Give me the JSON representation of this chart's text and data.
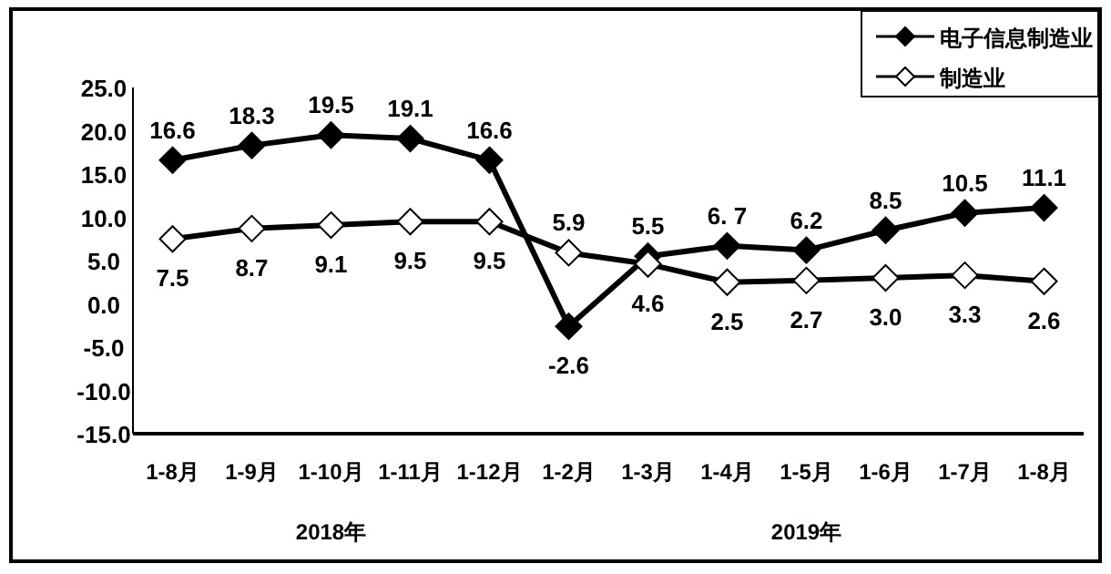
{
  "chart_data": {
    "type": "line",
    "categories": [
      "1-8月",
      "1-9月",
      "1-10月",
      "1-11月",
      "1-12月",
      "1-2月",
      "1-3月",
      "1-4月",
      "1-5月",
      "1-6月",
      "1-7月",
      "1-8月"
    ],
    "series": [
      {
        "name": "电子信息制造业",
        "color": "#000000",
        "values": [
          16.6,
          18.3,
          19.5,
          19.1,
          16.6,
          -2.6,
          5.5,
          6.7,
          6.2,
          8.5,
          10.5,
          11.1
        ],
        "value_labels": [
          "16.6",
          "18.3",
          "19.5",
          "19.1",
          "16.6",
          "-2.6",
          "5.5",
          "6. 7",
          "6.2",
          "8.5",
          "10.5",
          "11.1"
        ]
      },
      {
        "name": "制造业",
        "color": "#000000",
        "values": [
          7.5,
          8.7,
          9.1,
          9.5,
          9.5,
          5.9,
          4.6,
          2.5,
          2.7,
          3.0,
          3.3,
          2.6
        ],
        "value_labels": [
          "7.5",
          "8.7",
          "9.1",
          "9.5",
          "9.5",
          "5.9",
          "4.6",
          "2.5",
          "2.7",
          "3.0",
          "3.3",
          "2.6"
        ]
      }
    ],
    "ylim": [
      -15,
      25
    ],
    "yticks": [
      {
        "value": -15,
        "label": "-15.0"
      },
      {
        "value": -10,
        "label": "-10.0"
      },
      {
        "value": -5,
        "label": "-5.0"
      },
      {
        "value": 0,
        "label": "0.0"
      },
      {
        "value": 5,
        "label": "5.0"
      },
      {
        "value": 10,
        "label": "10.0"
      },
      {
        "value": 15,
        "label": "15.0"
      },
      {
        "value": 20,
        "label": "20.0"
      },
      {
        "value": 25,
        "label": "25.0"
      }
    ],
    "marker": "diamond",
    "legend": "top right",
    "grid": false,
    "annotations": [
      "2018年",
      "2019年"
    ]
  }
}
